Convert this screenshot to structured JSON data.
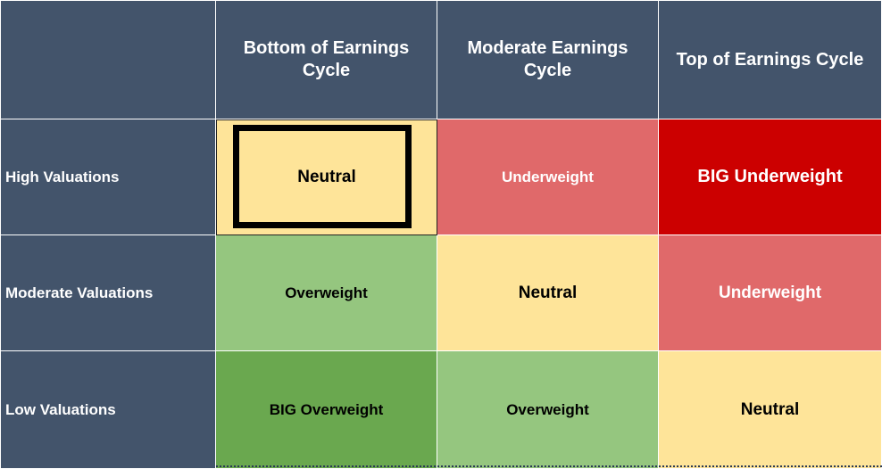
{
  "matrix": {
    "columns": [
      "Bottom of Earnings Cycle",
      "Moderate Earnings Cycle",
      "Top of Earnings Cycle"
    ],
    "rows": [
      {
        "label": "High Valuations",
        "cells": [
          "Neutral",
          "Underweight",
          "BIG Underweight"
        ]
      },
      {
        "label": "Moderate Valuations",
        "cells": [
          "Overweight",
          "Neutral",
          "Underweight"
        ]
      },
      {
        "label": "Low Valuations",
        "cells": [
          "BIG Overweight",
          "Overweight",
          "Neutral"
        ]
      }
    ]
  },
  "colors": {
    "header_bg": "#43546b",
    "neutral": "#fee499",
    "underweight": "#e0696a",
    "big_underweight": "#cc0000",
    "overweight": "#95c67f",
    "big_overweight": "#6aa84f",
    "highlight_border": "#000000"
  }
}
